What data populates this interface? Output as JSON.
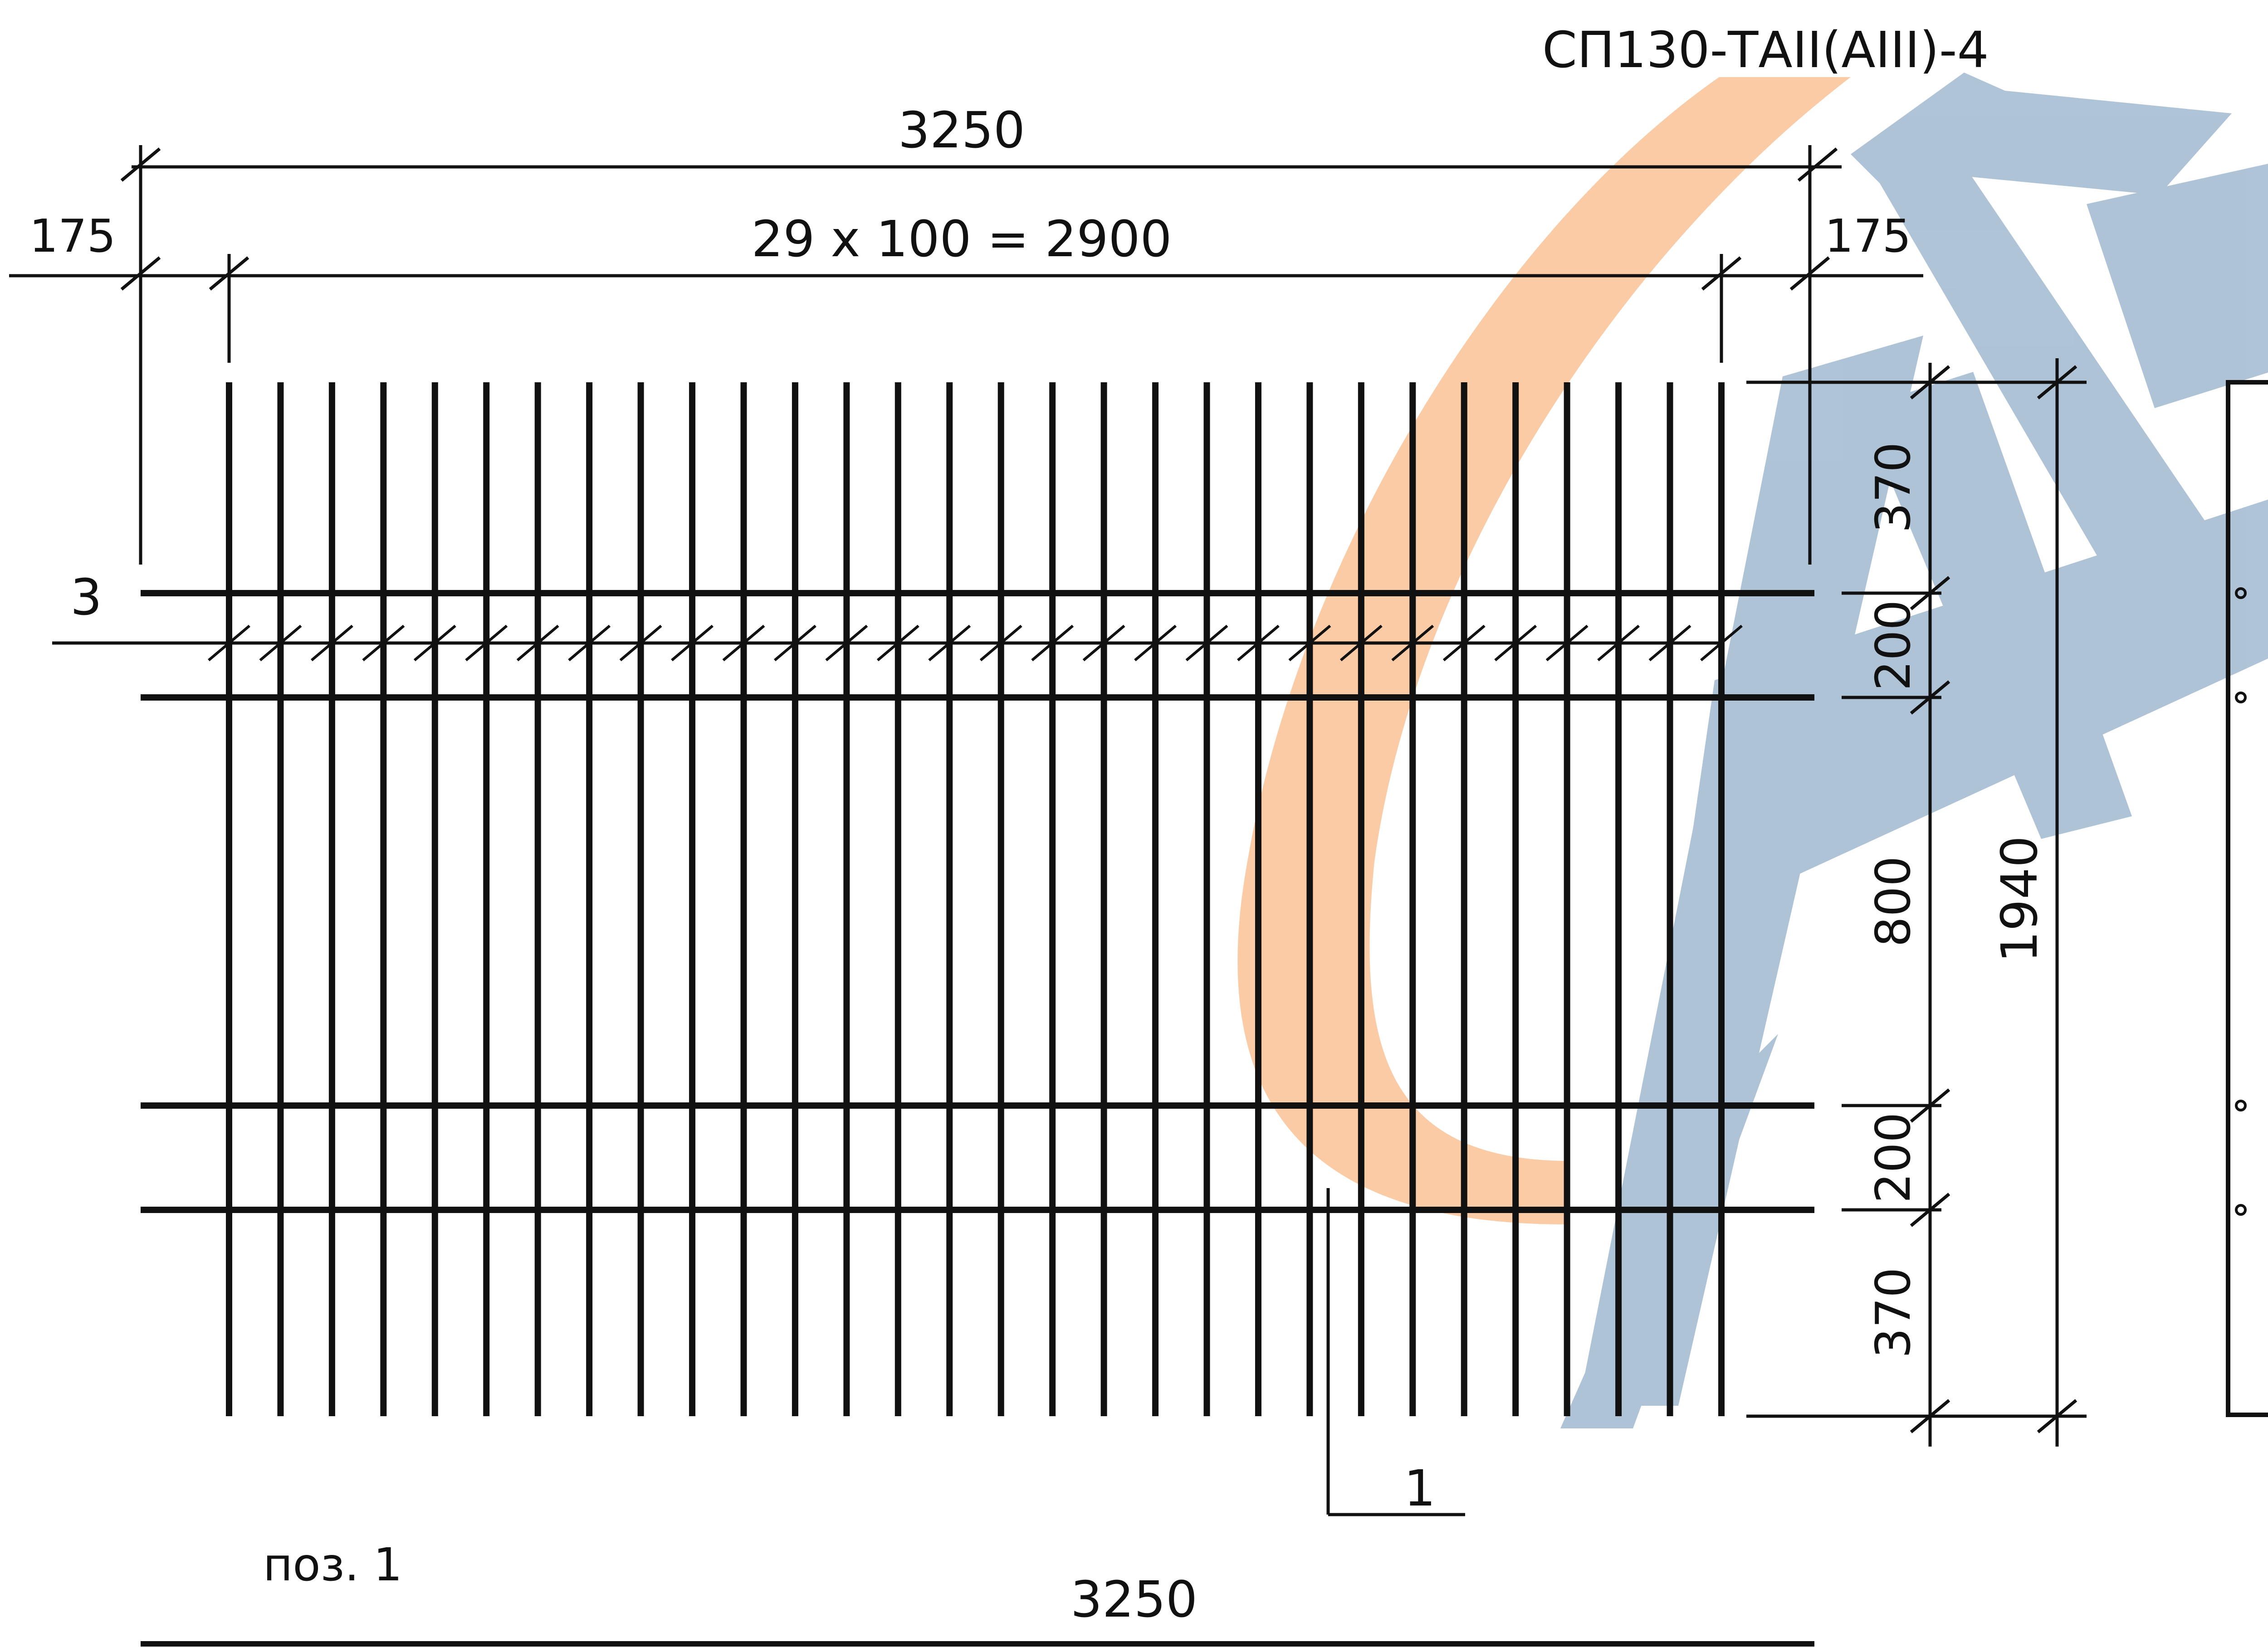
{
  "drawing": {
    "title": "СП130-ТАII(АIII)-4",
    "position_label": "поз. 1",
    "callout_label": "1",
    "bar_label": "3"
  },
  "dimensions": {
    "overall_width": "3250",
    "bar_spacing": "29 x 100 = 2900",
    "left_margin": "175",
    "right_margin": "175",
    "overall_height": "1940",
    "vertical_segments": [
      "370",
      "200",
      "800",
      "200",
      "370"
    ],
    "bottom_width": "3250"
  },
  "mesh": {
    "vertical_bar_count": 30,
    "horizontal_bar_count": 4
  },
  "colors": {
    "line": "#111111",
    "watermark_blue": "#6f93b7",
    "watermark_orange": "#f5a05a"
  }
}
